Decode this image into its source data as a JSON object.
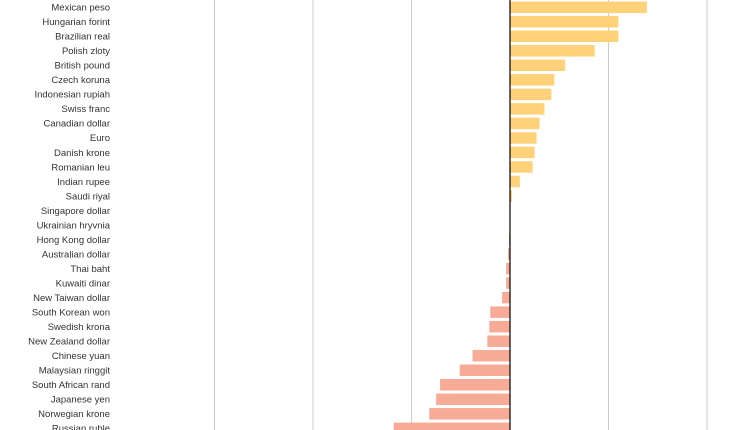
{
  "chart_data": {
    "type": "bar",
    "orientation": "horizontal",
    "categories": [
      "Mexican peso",
      "Hungarian forint",
      "Brazilian real",
      "Polish zloty",
      "British pound",
      "Czech koruna",
      "Indonesian rupiah",
      "Swiss franc",
      "Canadian dollar",
      "Euro",
      "Danish krone",
      "Romanian leu",
      "Indian rupee",
      "Saudi riyal",
      "Singapore dollar",
      "Ukrainian hryvnia",
      "Hong Kong dollar",
      "Australian dollar",
      "Thai baht",
      "Kuwaiti dinar",
      "New Taiwan dollar",
      "South Korean won",
      "Swedish krona",
      "New Zealand dollar",
      "Chinese yuan",
      "Malaysian ringgit",
      "South African rand",
      "Japanese yen",
      "Norwegian krone",
      "Russian ruble"
    ],
    "values": [
      13.9,
      11.0,
      11.0,
      8.6,
      5.6,
      4.5,
      4.2,
      3.5,
      3.0,
      2.7,
      2.5,
      2.3,
      1.0,
      0.2,
      0.0,
      0.0,
      -0.1,
      -0.2,
      -0.4,
      -0.4,
      -0.8,
      -2.0,
      -2.1,
      -2.3,
      -3.8,
      -5.1,
      -7.1,
      -7.5,
      -8.2,
      -11.8
    ],
    "partial_bar_below_value": -12.1,
    "xlim": [
      -40,
      20
    ],
    "xgrid_values": [
      -30,
      -20,
      -10,
      10,
      20
    ],
    "grid": true,
    "colors": {
      "positive": "#ffd27a",
      "negative": "#f7aa96",
      "gridline": "#cccccc",
      "zero_line": "#000000"
    }
  }
}
